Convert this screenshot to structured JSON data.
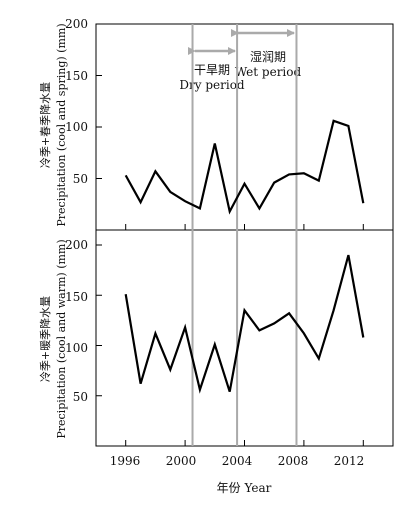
{
  "chart_data": [
    {
      "type": "line",
      "ylabel_cn": "冷季+春季降水量",
      "ylabel_en": "Precipitation (cool and spring) (mm)",
      "ylim": [
        0,
        200
      ],
      "yticks": [
        50,
        100,
        150,
        200
      ],
      "series": [
        {
          "x": [
            1996,
            1997,
            1998,
            1999,
            2000,
            2001,
            2002,
            2003,
            2004,
            2005,
            2006,
            2007,
            2008,
            2009,
            2010,
            2011,
            2012
          ],
          "values": [
            53,
            27,
            57,
            37,
            28,
            21,
            84,
            18,
            45,
            21,
            46,
            54,
            55,
            48,
            106,
            101,
            26
          ]
        }
      ]
    },
    {
      "type": "line",
      "ylabel_cn": "冷季+暖季降水量",
      "ylabel_en": "Precipitation (cool and warm) (mm)",
      "ylim": [
        0,
        200
      ],
      "yticks": [
        50,
        100,
        150,
        200
      ],
      "series": [
        {
          "x": [
            1996,
            1997,
            1998,
            1999,
            2000,
            2001,
            2002,
            2003,
            2004,
            2005,
            2006,
            2007,
            2008,
            2009,
            2010,
            2011,
            2012
          ],
          "values": [
            151,
            62,
            112,
            76,
            118,
            56,
            101,
            54,
            135,
            115,
            122,
            132,
            112,
            87,
            135,
            190,
            108
          ]
        }
      ]
    }
  ],
  "x_axis": {
    "xlabel": "年份 Year",
    "xlim": [
      1994,
      2014
    ],
    "xticks": [
      1996,
      2000,
      2004,
      2008,
      2012
    ]
  },
  "reference_lines": [
    2000.5,
    2003.5,
    2007.5
  ],
  "periods": {
    "dry_cn": "干旱期",
    "dry_en": "Dry period",
    "wet_cn": "湿润期",
    "wet_en": "Wet period"
  },
  "colors": {
    "line": "#000000",
    "reference": "#aaaaaa",
    "arrow": "#aaaaaa"
  }
}
